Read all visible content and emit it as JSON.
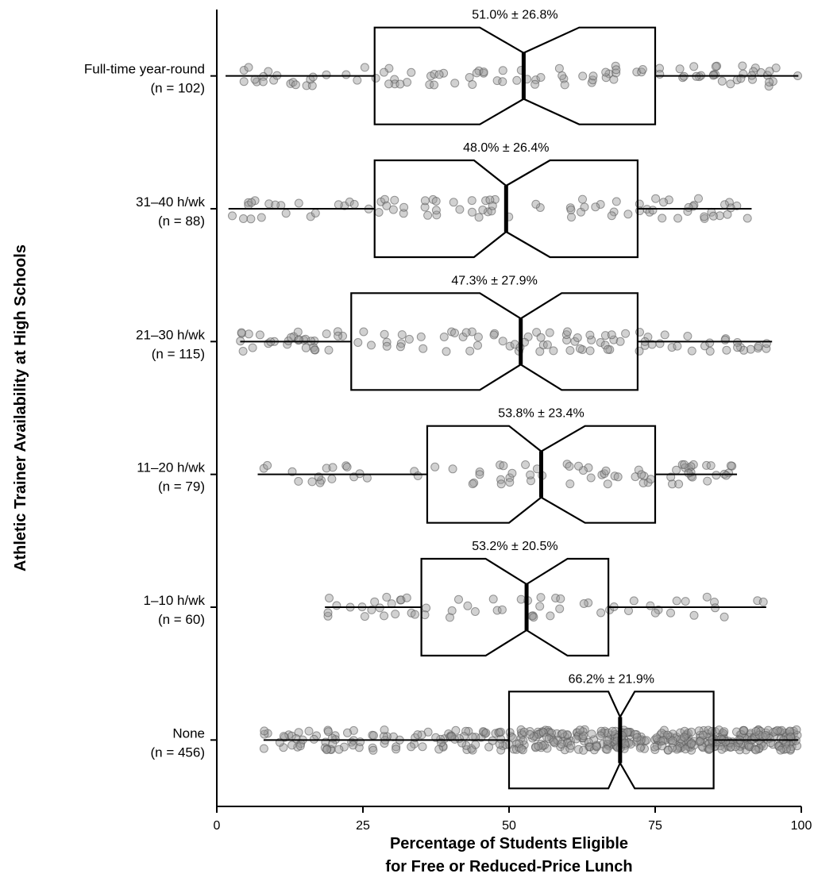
{
  "chart_data": {
    "type": "box",
    "orientation": "horizontal",
    "title": "",
    "xlabel_line1": "Percentage of Students Eligible",
    "xlabel_line2": "for Free or Reduced-Price Lunch",
    "ylabel": "Athletic Trainer Availability at High Schools",
    "xlim": [
      0,
      100
    ],
    "xticks": [
      0,
      25,
      50,
      75,
      100
    ],
    "grid": false,
    "legend": "none",
    "box_color": "#000000",
    "point_color": "#9a9a9a",
    "groups": [
      {
        "label": "Full-time year-round",
        "n_label": "(n = 102)",
        "stat_label": "51.0% ± 26.8%",
        "n": 102,
        "whisker_low": 1.5,
        "q1": 27,
        "median": 52.5,
        "q3": 75,
        "whisker_high": 99.5,
        "notch_low": 45,
        "notch_high": 62
      },
      {
        "label": "31–40 h/wk",
        "n_label": "(n = 88)",
        "stat_label": "48.0% ± 26.4%",
        "n": 88,
        "whisker_low": 2,
        "q1": 27,
        "median": 49.5,
        "q3": 72,
        "whisker_high": 91.5,
        "notch_low": 44,
        "notch_high": 57
      },
      {
        "label": "21–30 h/wk",
        "n_label": "(n = 115)",
        "stat_label": "47.3% ± 27.9%",
        "n": 115,
        "whisker_low": 4,
        "q1": 23,
        "median": 52,
        "q3": 72,
        "whisker_high": 95,
        "notch_low": 45,
        "notch_high": 59
      },
      {
        "label": "11–20 h/wk",
        "n_label": "(n = 79)",
        "stat_label": "53.8% ± 23.4%",
        "n": 79,
        "whisker_low": 7,
        "q1": 36,
        "median": 55.5,
        "q3": 75,
        "whisker_high": 89,
        "notch_low": 50,
        "notch_high": 63
      },
      {
        "label": "1–10 h/wk",
        "n_label": "(n = 60)",
        "stat_label": "53.2% ± 20.5%",
        "n": 60,
        "whisker_low": 18.5,
        "q1": 35,
        "median": 53,
        "q3": 67,
        "whisker_high": 94,
        "notch_low": 46,
        "notch_high": 60
      },
      {
        "label": "None",
        "n_label": "(n = 456)",
        "stat_label": "66.2% ± 21.9%",
        "n": 456,
        "whisker_low": 8,
        "q1": 50,
        "median": 69,
        "q3": 85,
        "whisker_high": 99.5,
        "notch_low": 67,
        "notch_high": 71.5
      }
    ]
  }
}
